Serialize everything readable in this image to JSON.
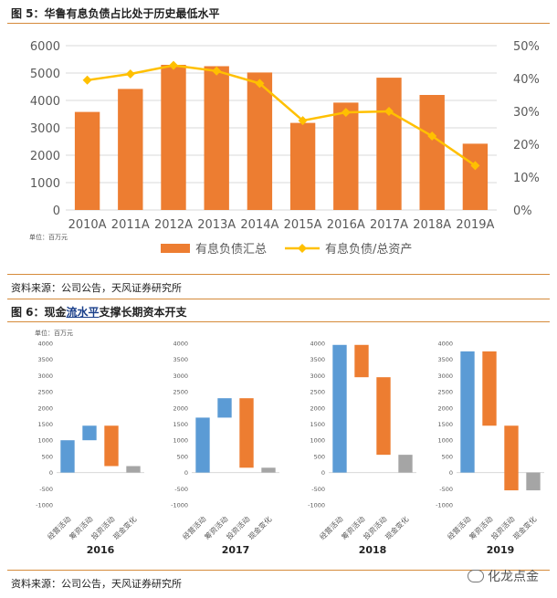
{
  "fig5": {
    "title": "图 5：华鲁有息负债占比处于历史最低水平",
    "unit": "单位：百万元",
    "source": "资料来源：公司公告，天风证券研究所"
  },
  "fig6": {
    "title_prefix": "图 6：现金",
    "title_link": "流水平",
    "title_suffix": "支撑长期资本开支",
    "unit": "单位：百万元",
    "source": "资料来源：公司公告，天风证券研究所"
  },
  "watermark": "化龙点金",
  "chart_data": [
    {
      "type": "bar",
      "categories": [
        "2010A",
        "2011A",
        "2012A",
        "2013A",
        "2014A",
        "2015A",
        "2016A",
        "2017A",
        "2018A",
        "2019A"
      ],
      "series": [
        {
          "name": "有息负债汇总",
          "type": "bar",
          "axis": "left",
          "color": "#ed7d31",
          "values": [
            3580,
            4420,
            5300,
            5250,
            5020,
            3180,
            3920,
            4830,
            4200,
            2420
          ]
        },
        {
          "name": "有息负债/总资产",
          "type": "line",
          "axis": "right",
          "color": "#ffc000",
          "values": [
            0.395,
            0.414,
            0.44,
            0.423,
            0.385,
            0.272,
            0.297,
            0.3,
            0.225,
            0.135
          ]
        }
      ],
      "ylim": [
        0,
        6000
      ],
      "yticks": [
        "0",
        "1000",
        "2000",
        "3000",
        "4000",
        "5000",
        "6000"
      ],
      "y2lim": [
        0,
        0.5
      ],
      "y2ticks": [
        "0%",
        "10%",
        "20%",
        "30%",
        "40%",
        "50%"
      ],
      "legend": "bottom"
    },
    {
      "type": "bar",
      "subtype": "waterfall",
      "year": "2016",
      "categories": [
        "经营活动",
        "筹资活动",
        "投资活动",
        "现金变化"
      ],
      "steps": [
        {
          "from": 0,
          "to": 1000,
          "color": "#5b9bd5"
        },
        {
          "from": 1000,
          "to": 1450,
          "color": "#5b9bd5"
        },
        {
          "from": 1450,
          "to": 200,
          "color": "#ed7d31"
        },
        {
          "from": 0,
          "to": 200,
          "color": "#a5a5a5"
        }
      ],
      "ylim": [
        -1000,
        4000
      ],
      "yticks": [
        "-1000",
        "-500",
        "0",
        "500",
        "1000",
        "1500",
        "2000",
        "2500",
        "3000",
        "3500",
        "4000"
      ]
    },
    {
      "type": "bar",
      "subtype": "waterfall",
      "year": "2017",
      "categories": [
        "经营活动",
        "筹资活动",
        "投资活动",
        "现金变化"
      ],
      "steps": [
        {
          "from": 0,
          "to": 1700,
          "color": "#5b9bd5"
        },
        {
          "from": 1700,
          "to": 2300,
          "color": "#5b9bd5"
        },
        {
          "from": 2300,
          "to": 150,
          "color": "#ed7d31"
        },
        {
          "from": 0,
          "to": 150,
          "color": "#a5a5a5"
        }
      ],
      "ylim": [
        -1000,
        4000
      ],
      "yticks": [
        "-1000",
        "-500",
        "0",
        "500",
        "1000",
        "1500",
        "2000",
        "2500",
        "3000",
        "3500",
        "4000"
      ]
    },
    {
      "type": "bar",
      "subtype": "waterfall",
      "year": "2018",
      "categories": [
        "经营活动",
        "筹资活动",
        "投资活动",
        "现金变化"
      ],
      "steps": [
        {
          "from": 0,
          "to": 3950,
          "color": "#5b9bd5"
        },
        {
          "from": 3950,
          "to": 2950,
          "color": "#ed7d31"
        },
        {
          "from": 2950,
          "to": 550,
          "color": "#ed7d31"
        },
        {
          "from": 0,
          "to": 550,
          "color": "#a5a5a5"
        }
      ],
      "ylim": [
        -1000,
        4000
      ],
      "yticks": [
        "-1000",
        "-500",
        "0",
        "500",
        "1000",
        "1500",
        "2000",
        "2500",
        "3000",
        "3500",
        "4000"
      ]
    },
    {
      "type": "bar",
      "subtype": "waterfall",
      "year": "2019",
      "categories": [
        "经营活动",
        "筹资活动",
        "投资活动",
        "现金变化"
      ],
      "steps": [
        {
          "from": 0,
          "to": 3750,
          "color": "#5b9bd5"
        },
        {
          "from": 3750,
          "to": 1450,
          "color": "#ed7d31"
        },
        {
          "from": 1450,
          "to": -550,
          "color": "#ed7d31"
        },
        {
          "from": 0,
          "to": -550,
          "color": "#a5a5a5"
        }
      ],
      "ylim": [
        -1000,
        4000
      ],
      "yticks": [
        "-1000",
        "-500",
        "0",
        "500",
        "1000",
        "1500",
        "2000",
        "2500",
        "3000",
        "3500",
        "4000"
      ]
    }
  ]
}
